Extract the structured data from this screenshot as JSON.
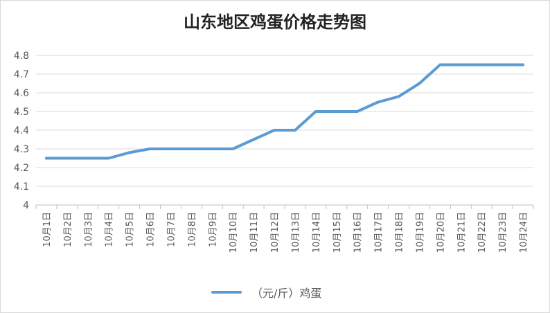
{
  "chart_data": {
    "type": "line",
    "title": "山东地区鸡蛋价格走势图",
    "categories": [
      "10月1日",
      "10月2日",
      "10月3日",
      "10月4日",
      "10月5日",
      "10月6日",
      "10月7日",
      "10月8日",
      "10月9日",
      "10月10日",
      "10月11日",
      "10月12日",
      "10月13日",
      "10月14日",
      "10月15日",
      "10月16日",
      "10月17日",
      "10月18日",
      "10月19日",
      "10月20日",
      "10月21日",
      "10月22日",
      "10月23日",
      "10月24日"
    ],
    "series": [
      {
        "name": "（元/斤）鸡蛋",
        "color": "#5b9bd5",
        "values": [
          4.25,
          4.25,
          4.25,
          4.25,
          4.28,
          4.3,
          4.3,
          4.3,
          4.3,
          4.3,
          4.35,
          4.4,
          4.4,
          4.5,
          4.5,
          4.5,
          4.55,
          4.58,
          4.65,
          4.75,
          4.75,
          4.75,
          4.75,
          4.75
        ]
      }
    ],
    "yticks": [
      "4",
      "4.1",
      "4.2",
      "4.3",
      "4.4",
      "4.5",
      "4.6",
      "4.7",
      "4.8"
    ],
    "ylim": [
      4,
      4.8
    ],
    "grid": true,
    "legend": "bottom"
  }
}
